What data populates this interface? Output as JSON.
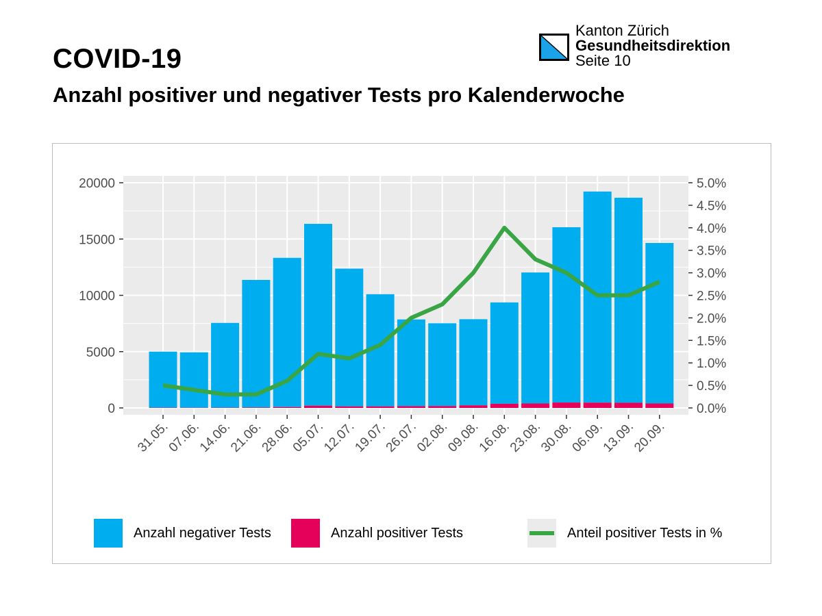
{
  "header": {
    "title": "COVID-19",
    "subtitle": "Anzahl positiver und negativer Tests pro Kalenderwoche"
  },
  "org": {
    "line1": "Kanton Zürich",
    "line2": "Gesundheitsdirektion",
    "line3": "Seite 10",
    "logo_icon": "zurich-canton-flag-icon"
  },
  "colors": {
    "negative": "#00aeef",
    "positive": "#e5005a",
    "line": "#3aa544",
    "panel": "#ebebeb",
    "grid": "#ffffff",
    "axis_text": "#4d4d4d"
  },
  "chart_data": {
    "type": "bar",
    "stacked": true,
    "categories": [
      "31.05.",
      "07.06.",
      "14.06.",
      "21.06.",
      "28.06.",
      "05.07.",
      "12.07.",
      "19.07.",
      "26.07.",
      "02.08.",
      "09.08.",
      "16.08.",
      "23.08.",
      "30.08.",
      "06.09.",
      "13.09.",
      "20.09."
    ],
    "series": [
      {
        "name": "Anzahl negativer Tests",
        "values": [
          4975,
          4920,
          7525,
          11330,
          13250,
          16150,
          12230,
          9960,
          7700,
          7350,
          7650,
          9000,
          11630,
          15570,
          18750,
          18210,
          14250
        ]
      },
      {
        "name": "Anzahl positiver Tests",
        "values": [
          25,
          20,
          25,
          40,
          80,
          200,
          140,
          140,
          160,
          170,
          230,
          370,
          400,
          480,
          470,
          460,
          400
        ]
      }
    ],
    "line_series": {
      "name": "Anteil positiver Tests in %",
      "axis": "right",
      "values": [
        0.5,
        0.4,
        0.3,
        0.3,
        0.6,
        1.2,
        1.1,
        1.4,
        2.0,
        2.3,
        3.0,
        4.0,
        3.3,
        3.0,
        2.5,
        2.5,
        2.8
      ]
    },
    "y_left": {
      "lim": [
        0,
        20000
      ],
      "ticks": [
        "0",
        "5000",
        "10000",
        "15000",
        "20000"
      ]
    },
    "y_right": {
      "lim": [
        0,
        5
      ],
      "ticks": [
        "0.0%",
        "0.5%",
        "1.0%",
        "1.5%",
        "2.0%",
        "2.5%",
        "3.0%",
        "3.5%",
        "4.0%",
        "4.5%",
        "5.0%"
      ]
    },
    "grid": true,
    "legend_position": "bottom",
    "legend": [
      "Anzahl negativer Tests",
      "Anzahl positiver Tests",
      "Anteil positiver Tests in %"
    ]
  }
}
